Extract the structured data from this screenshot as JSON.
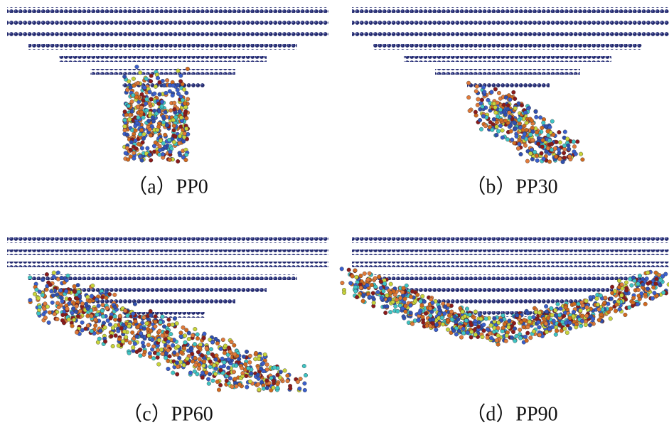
{
  "panels": [
    {
      "caption": "（a）PP0"
    },
    {
      "caption": "（b）PP30"
    },
    {
      "caption": "（c）PP60"
    },
    {
      "caption": "（d）PP90"
    }
  ]
}
